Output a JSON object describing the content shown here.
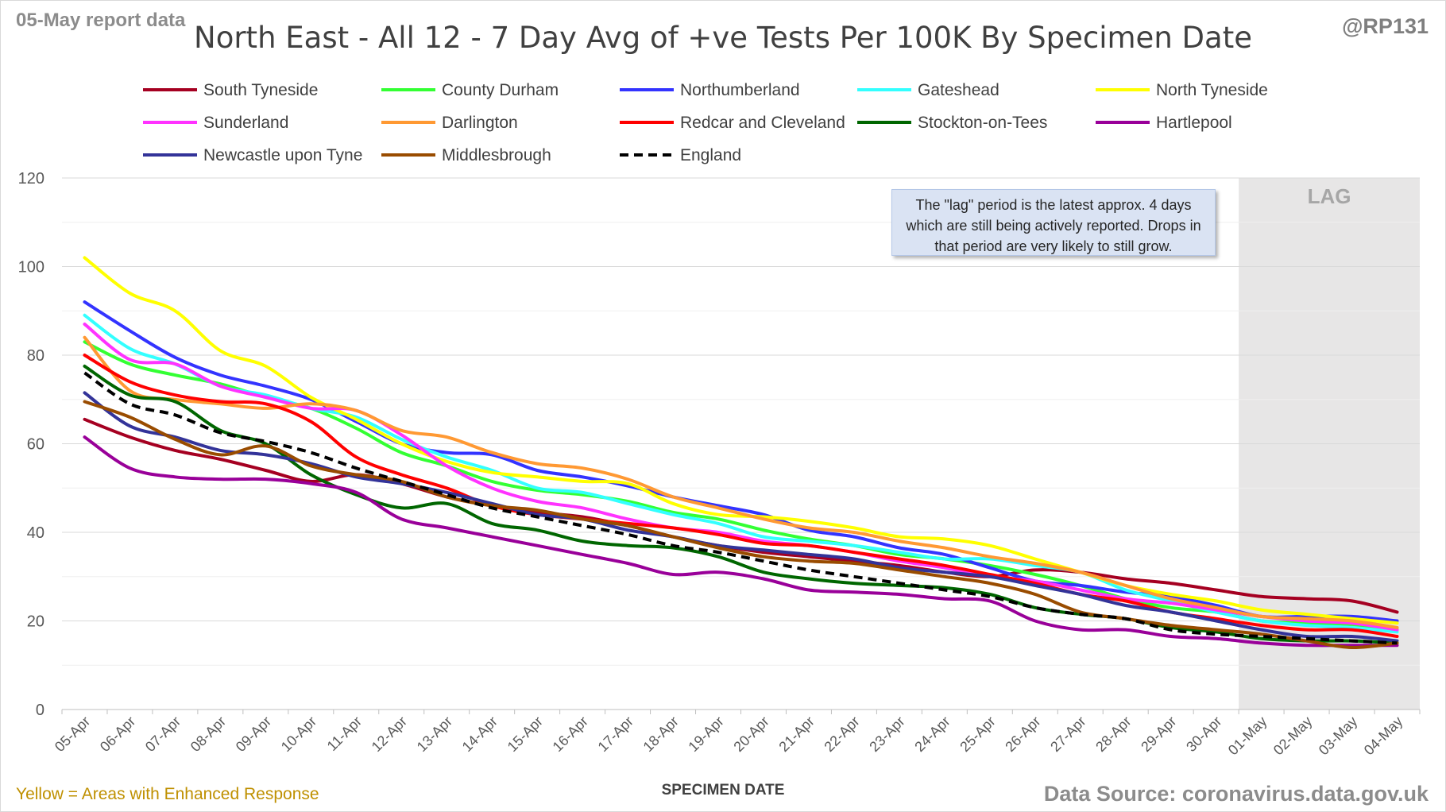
{
  "header": {
    "report_date": "05-May report data",
    "title": "North East - All 12 - 7 Day Avg of +ve Tests Per 100K By Specimen Date",
    "handle": "@RP131"
  },
  "footer": {
    "note": "Yellow = Areas with Enhanced Response",
    "source": "Data Source: coronavirus.data.gov.uk"
  },
  "annotation": {
    "text": "The \"lag\" period is the latest approx. 4 days which are still being actively reported. Drops in that period are very likely to still grow."
  },
  "lag_label": "LAG",
  "chart_data": {
    "type": "line",
    "title": "North East - All 12 - 7 Day Avg of +ve Tests Per 100K By Specimen Date",
    "xlabel": "SPECIMEN DATE",
    "ylabel": "",
    "ylim": [
      0,
      120
    ],
    "yticks": [
      0,
      20,
      40,
      60,
      80,
      100,
      120
    ],
    "grid": true,
    "legend_position": "top",
    "lag_period": [
      "01-May",
      "04-May"
    ],
    "categories": [
      "05-Apr",
      "06-Apr",
      "07-Apr",
      "08-Apr",
      "09-Apr",
      "10-Apr",
      "11-Apr",
      "12-Apr",
      "13-Apr",
      "14-Apr",
      "15-Apr",
      "16-Apr",
      "17-Apr",
      "18-Apr",
      "19-Apr",
      "20-Apr",
      "21-Apr",
      "22-Apr",
      "23-Apr",
      "24-Apr",
      "25-Apr",
      "26-Apr",
      "27-Apr",
      "28-Apr",
      "29-Apr",
      "30-Apr",
      "01-May",
      "02-May",
      "03-May",
      "04-May"
    ],
    "series": [
      {
        "name": "South Tyneside",
        "color": "#a50021",
        "dash": false,
        "values": [
          65.5,
          61.5,
          58.5,
          56.5,
          54,
          51.5,
          53,
          51,
          48,
          46,
          44.5,
          43.5,
          41.5,
          39,
          37,
          35.5,
          34.5,
          33.5,
          32.5,
          31,
          30,
          31.5,
          31,
          29.5,
          28.5,
          27,
          25.5,
          25,
          24.5,
          22
        ]
      },
      {
        "name": "County Durham",
        "color": "#33ff33",
        "dash": false,
        "values": [
          83,
          78,
          75.5,
          73.5,
          70.5,
          68,
          63.5,
          58,
          55,
          51.5,
          49.5,
          48.5,
          47,
          44.5,
          43,
          40.5,
          38.5,
          37,
          35,
          34,
          32.5,
          30.5,
          28,
          25,
          23,
          22,
          20,
          19.5,
          19,
          18
        ]
      },
      {
        "name": "Northumberland",
        "color": "#3333ff",
        "dash": false,
        "values": [
          92,
          85.5,
          79.5,
          75.5,
          73,
          70,
          65,
          60,
          58,
          57.5,
          54,
          52.5,
          50.5,
          48,
          46,
          44,
          40.5,
          39,
          36.5,
          35,
          32,
          29,
          28,
          26.5,
          25.5,
          23.5,
          21,
          21,
          21,
          20
        ]
      },
      {
        "name": "Gateshead",
        "color": "#33ffff",
        "dash": false,
        "values": [
          89,
          81.5,
          78,
          73,
          71,
          68,
          66,
          61,
          57,
          54,
          50,
          49,
          46.5,
          44,
          42,
          39,
          38,
          37,
          35.5,
          34,
          34,
          32.5,
          31,
          27,
          24.5,
          22,
          20,
          19,
          18.5,
          17.5
        ]
      },
      {
        "name": "North Tyneside",
        "color": "#ffff00",
        "dash": false,
        "values": [
          102,
          94,
          90,
          81,
          77.5,
          70.5,
          65.5,
          60,
          56,
          53.5,
          52.5,
          51.5,
          51,
          46.5,
          44,
          43.5,
          42.5,
          41,
          39,
          38.5,
          37,
          34,
          31,
          28,
          26,
          24.5,
          22.5,
          21.5,
          20.5,
          19.5
        ]
      },
      {
        "name": "Sunderland",
        "color": "#ff33ff",
        "dash": false,
        "values": [
          87,
          79,
          78,
          73,
          70.5,
          68,
          67.5,
          62,
          55,
          50,
          47,
          45.5,
          43,
          41,
          40,
          38,
          37,
          35.5,
          33.5,
          32,
          30,
          29,
          27,
          25,
          24,
          22.5,
          21,
          20,
          19.5,
          18
        ]
      },
      {
        "name": "Darlington",
        "color": "#ff9933",
        "dash": false,
        "values": [
          84,
          72,
          70,
          69,
          68,
          69,
          67.5,
          63,
          61.5,
          58,
          55.5,
          54.5,
          52,
          48,
          45.5,
          43,
          41,
          40,
          38,
          36.5,
          34.5,
          33,
          31,
          28,
          25,
          23,
          21,
          20.5,
          20,
          18.5
        ]
      },
      {
        "name": "Redcar and Cleveland",
        "color": "#ff0000",
        "dash": false,
        "values": [
          80,
          74,
          71,
          69.5,
          69,
          65,
          57,
          53,
          50,
          46,
          44,
          43,
          42,
          41,
          39.5,
          37.5,
          37,
          35.5,
          34,
          32.5,
          30.5,
          28.5,
          26,
          24.5,
          22,
          20.5,
          19,
          18,
          18,
          16.5
        ]
      },
      {
        "name": "Stockton-on-Tees",
        "color": "#006600",
        "dash": false,
        "values": [
          77.5,
          71,
          69.5,
          63,
          60,
          53,
          48.5,
          45.5,
          46.5,
          42,
          40.5,
          38,
          37,
          36.5,
          34.5,
          31,
          29.5,
          28.5,
          28,
          27.5,
          26,
          23,
          21.5,
          20.5,
          18.5,
          17.5,
          16,
          15.5,
          15.5,
          15
        ]
      },
      {
        "name": "Hartlepool",
        "color": "#990099",
        "dash": false,
        "values": [
          61.5,
          54.5,
          52.5,
          52,
          52,
          51,
          49,
          43,
          41,
          39,
          37,
          35,
          33,
          30.5,
          31,
          29.5,
          27,
          26.5,
          26,
          25,
          24.5,
          20,
          18,
          18,
          16.5,
          16,
          15,
          14.5,
          14.5,
          14.5
        ]
      },
      {
        "name": "Newcastle upon Tyne",
        "color": "#333399",
        "dash": false,
        "values": [
          71.5,
          64,
          61.5,
          58.5,
          57.5,
          55.5,
          52.5,
          51,
          49,
          46.5,
          44,
          43,
          40.5,
          39,
          37,
          36,
          35,
          34,
          32,
          31,
          30,
          28,
          26,
          23.5,
          22,
          20,
          18,
          16.5,
          16.5,
          15.5
        ]
      },
      {
        "name": "Middlesbrough",
        "color": "#994c00",
        "dash": false,
        "values": [
          69.5,
          66,
          61,
          57.5,
          59.5,
          55,
          53,
          51.5,
          48,
          46,
          45,
          43,
          41.5,
          39,
          36.5,
          34.5,
          33.5,
          33,
          31.5,
          30,
          28.5,
          26,
          22,
          20.5,
          19,
          18,
          17,
          15.5,
          14,
          15
        ]
      },
      {
        "name": "England",
        "color": "#000000",
        "dash": true,
        "values": [
          76,
          69,
          66.5,
          62.5,
          60.5,
          58,
          54.5,
          51.5,
          48.5,
          45.5,
          43.5,
          41.5,
          39.5,
          37,
          35.5,
          33.5,
          31.5,
          30,
          28.5,
          27,
          25.5,
          23,
          21.5,
          20.5,
          18,
          17,
          16.5,
          16,
          15.5,
          15
        ]
      }
    ]
  }
}
